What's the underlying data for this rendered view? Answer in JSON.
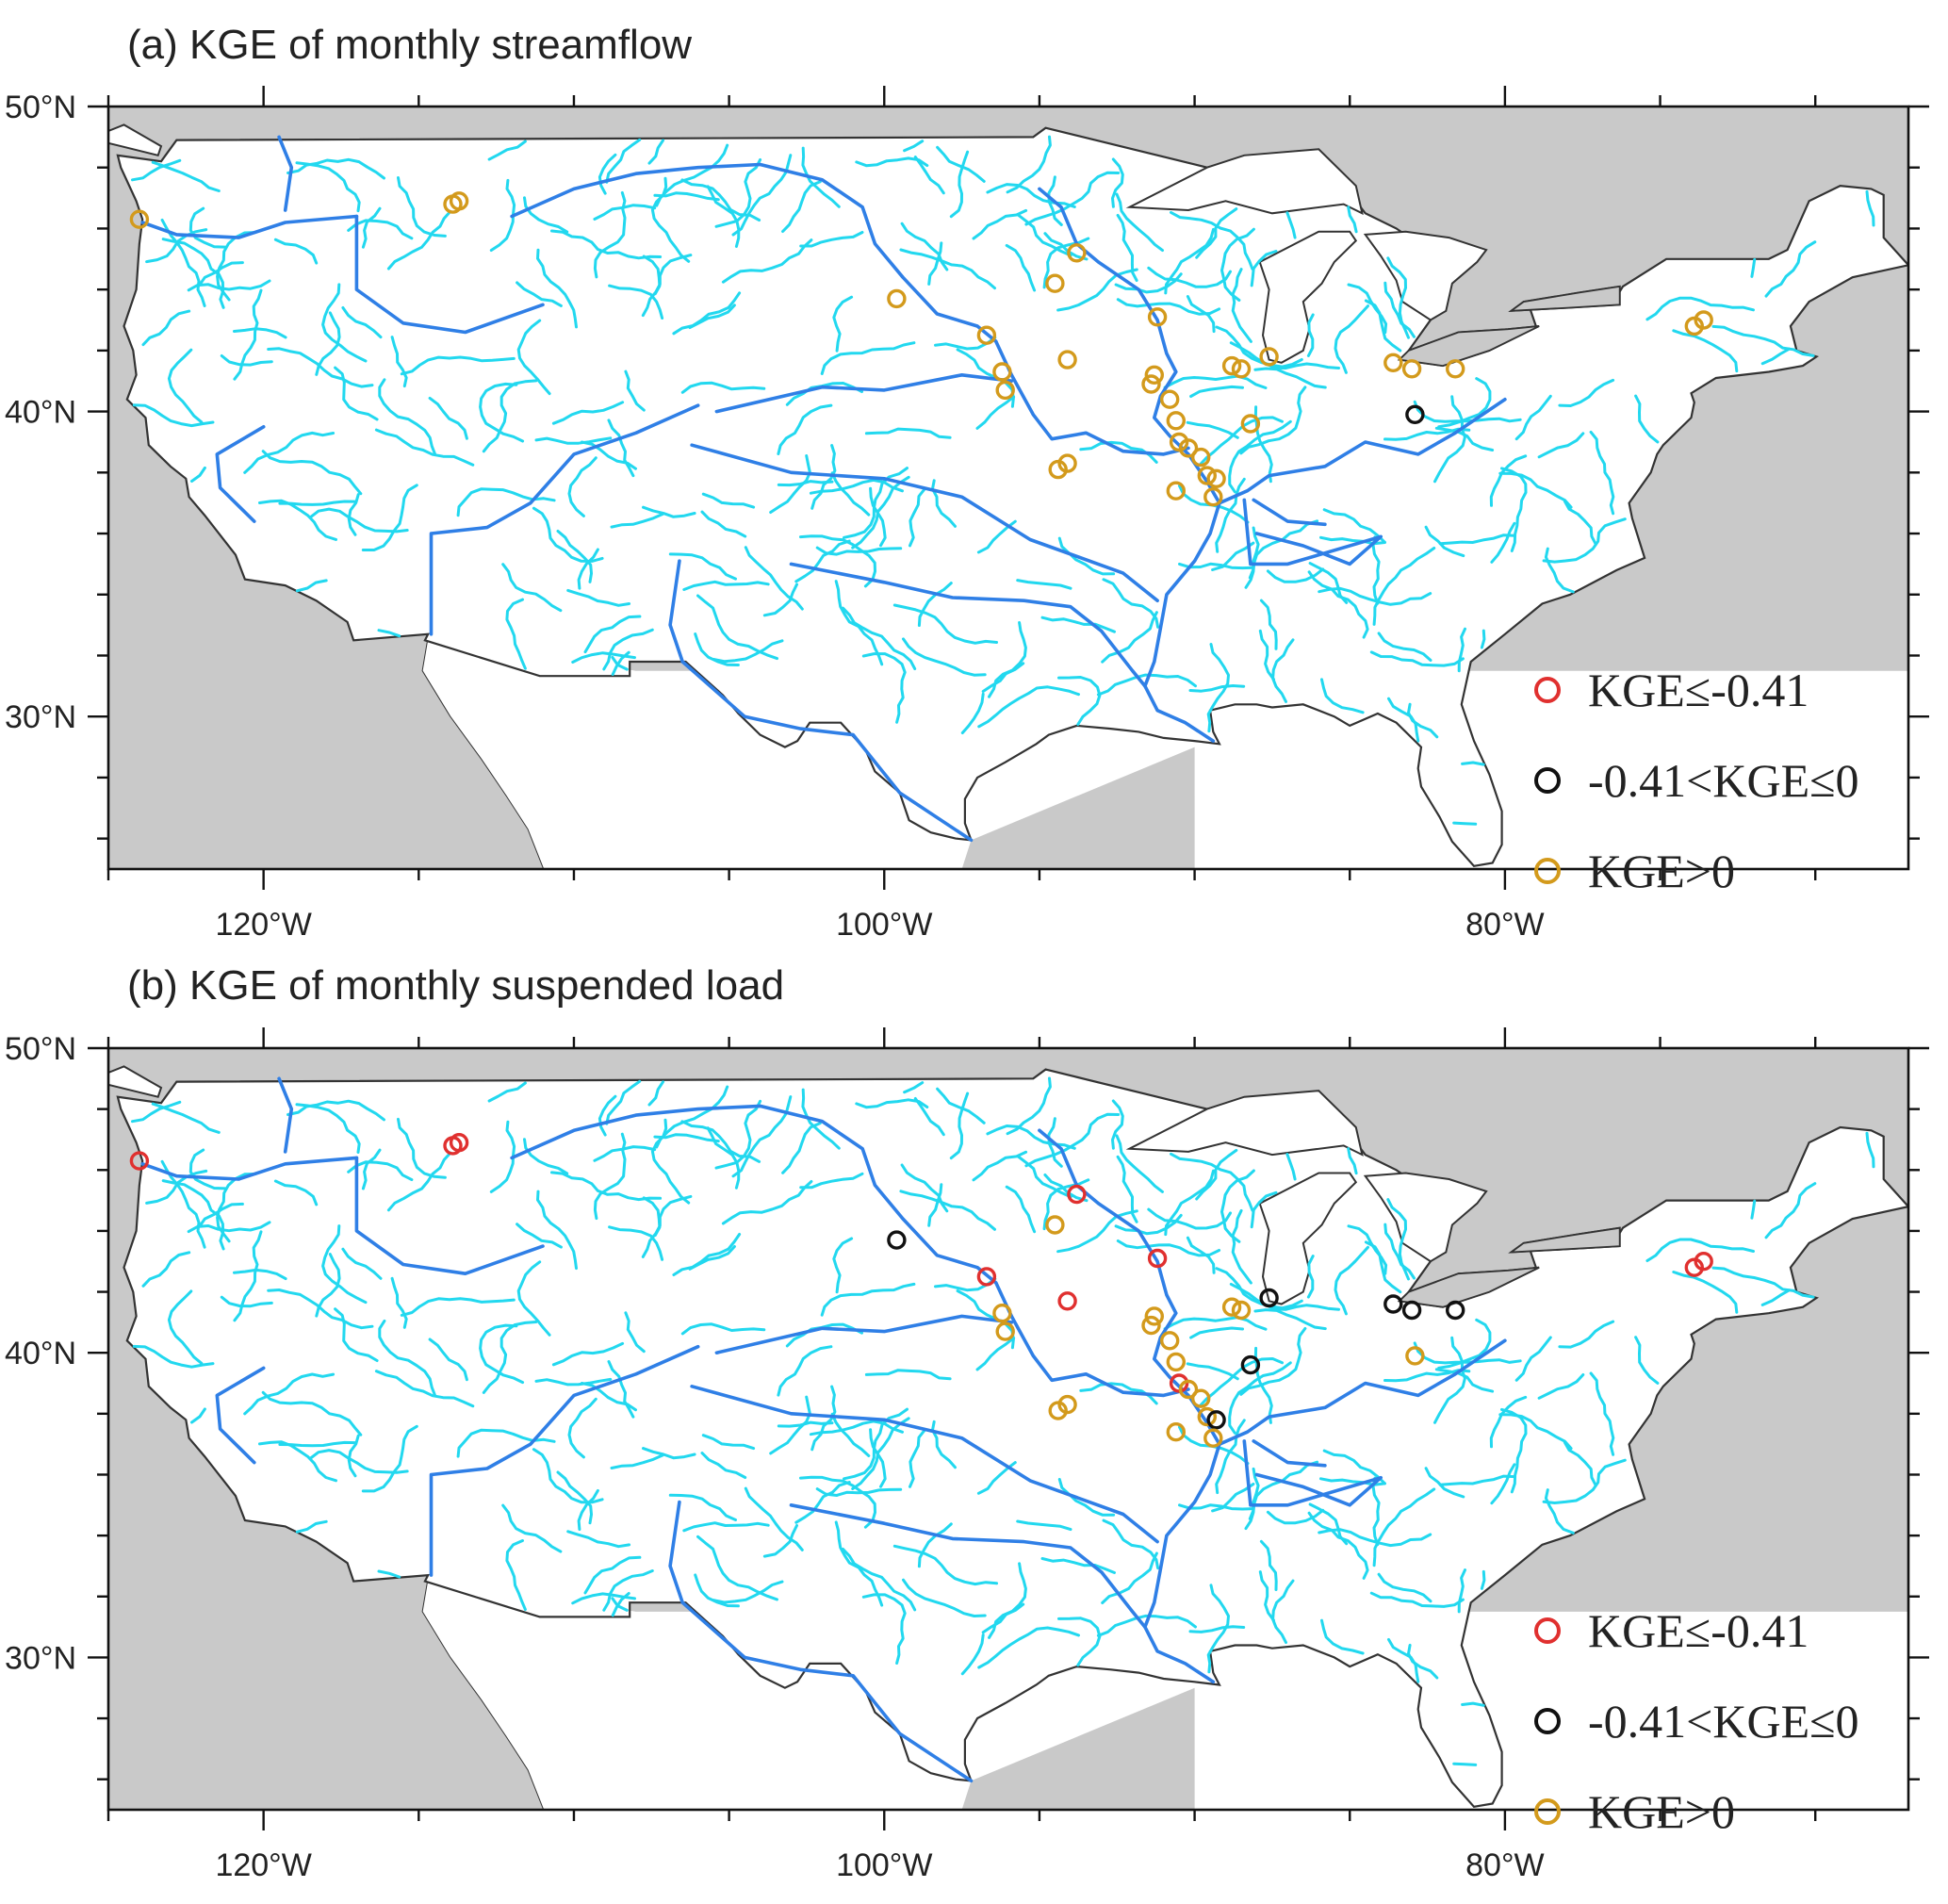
{
  "panels": [
    {
      "id": "a",
      "title": "(a) KGE of monthly streamflow",
      "sites": [
        {
          "lon": -124.0,
          "lat": 46.3,
          "cls": 2
        },
        {
          "lon": -113.9,
          "lat": 46.8,
          "cls": 2
        },
        {
          "lon": -113.7,
          "lat": 46.9,
          "cls": 2
        },
        {
          "lon": -99.6,
          "lat": 43.7,
          "cls": 2
        },
        {
          "lon": -96.7,
          "lat": 42.5,
          "cls": 2
        },
        {
          "lon": -96.2,
          "lat": 41.3,
          "cls": 2
        },
        {
          "lon": -96.1,
          "lat": 40.7,
          "cls": 2
        },
        {
          "lon": -94.5,
          "lat": 44.2,
          "cls": 2
        },
        {
          "lon": -93.8,
          "lat": 45.2,
          "cls": 2
        },
        {
          "lon": -94.1,
          "lat": 41.7,
          "cls": 2
        },
        {
          "lon": -94.4,
          "lat": 38.1,
          "cls": 2
        },
        {
          "lon": -94.1,
          "lat": 38.3,
          "cls": 2
        },
        {
          "lon": -91.2,
          "lat": 43.1,
          "cls": 2
        },
        {
          "lon": -91.3,
          "lat": 41.2,
          "cls": 2
        },
        {
          "lon": -91.4,
          "lat": 40.9,
          "cls": 2
        },
        {
          "lon": -90.8,
          "lat": 40.4,
          "cls": 2
        },
        {
          "lon": -90.6,
          "lat": 39.7,
          "cls": 2
        },
        {
          "lon": -90.5,
          "lat": 39.0,
          "cls": 2
        },
        {
          "lon": -90.2,
          "lat": 38.8,
          "cls": 2
        },
        {
          "lon": -89.8,
          "lat": 38.5,
          "cls": 2
        },
        {
          "lon": -89.6,
          "lat": 37.9,
          "cls": 2
        },
        {
          "lon": -89.3,
          "lat": 37.8,
          "cls": 2
        },
        {
          "lon": -90.6,
          "lat": 37.4,
          "cls": 2
        },
        {
          "lon": -89.4,
          "lat": 37.2,
          "cls": 2
        },
        {
          "lon": -88.8,
          "lat": 41.5,
          "cls": 2
        },
        {
          "lon": -88.5,
          "lat": 41.4,
          "cls": 2
        },
        {
          "lon": -87.6,
          "lat": 41.8,
          "cls": 2
        },
        {
          "lon": -88.2,
          "lat": 39.6,
          "cls": 2
        },
        {
          "lon": -83.6,
          "lat": 41.6,
          "cls": 2
        },
        {
          "lon": -83.0,
          "lat": 41.4,
          "cls": 2
        },
        {
          "lon": -81.6,
          "lat": 41.4,
          "cls": 2
        },
        {
          "lon": -82.9,
          "lat": 39.9,
          "cls": 1
        },
        {
          "lon": -73.9,
          "lat": 42.8,
          "cls": 2
        },
        {
          "lon": -73.6,
          "lat": 43.0,
          "cls": 2
        }
      ]
    },
    {
      "id": "b",
      "title": "(b) KGE of monthly suspended load",
      "sites": [
        {
          "lon": -124.0,
          "lat": 46.3,
          "cls": 0
        },
        {
          "lon": -113.9,
          "lat": 46.8,
          "cls": 0
        },
        {
          "lon": -113.7,
          "lat": 46.9,
          "cls": 0
        },
        {
          "lon": -99.6,
          "lat": 43.7,
          "cls": 1
        },
        {
          "lon": -96.7,
          "lat": 42.5,
          "cls": 0
        },
        {
          "lon": -96.2,
          "lat": 41.3,
          "cls": 2
        },
        {
          "lon": -96.1,
          "lat": 40.7,
          "cls": 2
        },
        {
          "lon": -94.5,
          "lat": 44.2,
          "cls": 2
        },
        {
          "lon": -93.8,
          "lat": 45.2,
          "cls": 0
        },
        {
          "lon": -94.1,
          "lat": 41.7,
          "cls": 0
        },
        {
          "lon": -94.4,
          "lat": 38.1,
          "cls": 2
        },
        {
          "lon": -94.1,
          "lat": 38.3,
          "cls": 2
        },
        {
          "lon": -91.2,
          "lat": 43.1,
          "cls": 0
        },
        {
          "lon": -91.3,
          "lat": 41.2,
          "cls": 2
        },
        {
          "lon": -91.4,
          "lat": 40.9,
          "cls": 2
        },
        {
          "lon": -90.8,
          "lat": 40.4,
          "cls": 2
        },
        {
          "lon": -90.6,
          "lat": 39.7,
          "cls": 2
        },
        {
          "lon": -90.5,
          "lat": 39.0,
          "cls": 0
        },
        {
          "lon": -90.2,
          "lat": 38.8,
          "cls": 2
        },
        {
          "lon": -89.8,
          "lat": 38.5,
          "cls": 2
        },
        {
          "lon": -89.6,
          "lat": 37.9,
          "cls": 2
        },
        {
          "lon": -89.3,
          "lat": 37.8,
          "cls": 1
        },
        {
          "lon": -90.6,
          "lat": 37.4,
          "cls": 2
        },
        {
          "lon": -89.4,
          "lat": 37.2,
          "cls": 2
        },
        {
          "lon": -88.8,
          "lat": 41.5,
          "cls": 2
        },
        {
          "lon": -88.5,
          "lat": 41.4,
          "cls": 2
        },
        {
          "lon": -87.6,
          "lat": 41.8,
          "cls": 1
        },
        {
          "lon": -88.2,
          "lat": 39.6,
          "cls": 1
        },
        {
          "lon": -83.6,
          "lat": 41.6,
          "cls": 1
        },
        {
          "lon": -83.0,
          "lat": 41.4,
          "cls": 1
        },
        {
          "lon": -81.6,
          "lat": 41.4,
          "cls": 1
        },
        {
          "lon": -82.9,
          "lat": 39.9,
          "cls": 2
        },
        {
          "lon": -73.9,
          "lat": 42.8,
          "cls": 0
        },
        {
          "lon": -73.6,
          "lat": 43.0,
          "cls": 0
        }
      ]
    }
  ],
  "axes": {
    "lon_range": [
      -125,
      -67
    ],
    "lat_range": [
      25,
      50
    ],
    "x_ticks": [
      {
        "value": -120,
        "label": "120°W"
      },
      {
        "value": -100,
        "label": "100°W"
      },
      {
        "value": -80,
        "label": "80°W"
      }
    ],
    "y_ticks": [
      {
        "value": 50,
        "label": "50°N"
      },
      {
        "value": 40,
        "label": "40°N"
      },
      {
        "value": 30,
        "label": "30°N"
      }
    ],
    "x_minor_step": 5,
    "y_minor_step": 2
  },
  "legend": {
    "placement": "bottom-right",
    "items": [
      {
        "label": "KGE≤-0.41",
        "color": "#e0302f"
      },
      {
        "label": "-0.41<KGE≤0",
        "color": "#111111"
      },
      {
        "label": "KGE>0",
        "color": "#d39a1c"
      }
    ]
  },
  "colors": {
    "land": "#ffffff",
    "background": "#c9c9c9",
    "coastline": "#333333",
    "tributary": "#22d8ef",
    "main_river": "#2f7fe6"
  }
}
